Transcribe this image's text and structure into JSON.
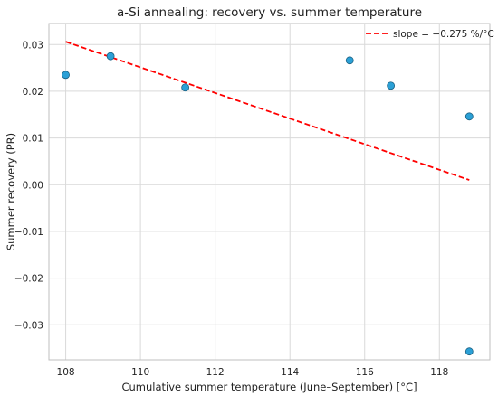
{
  "chart_data": {
    "type": "scatter",
    "title": "a-Si annealing: recovery vs. summer temperature",
    "xlabel": "Cumulative summer temperature (June–September) [°C]",
    "ylabel": "Summer recovery (PR)",
    "xlim": [
      107.55,
      119.35
    ],
    "ylim": [
      -0.0375,
      0.0345
    ],
    "x_ticks": [
      108,
      110,
      112,
      114,
      116,
      118
    ],
    "x_tick_labels": [
      "108",
      "110",
      "112",
      "114",
      "116",
      "118"
    ],
    "y_ticks": [
      -0.03,
      -0.02,
      -0.01,
      0.0,
      0.01,
      0.02,
      0.03
    ],
    "y_tick_labels": [
      "−0.03",
      "−0.02",
      "−0.01",
      "0.00",
      "0.01",
      "0.02",
      "0.03"
    ],
    "grid": true,
    "legend_position": "top-right",
    "points": [
      {
        "x": 108.0,
        "y": 0.0235
      },
      {
        "x": 109.2,
        "y": 0.0275
      },
      {
        "x": 111.2,
        "y": 0.0208
      },
      {
        "x": 115.6,
        "y": 0.0266
      },
      {
        "x": 116.7,
        "y": 0.0212
      },
      {
        "x": 118.8,
        "y": 0.0146
      },
      {
        "x": 118.8,
        "y": -0.0357
      }
    ],
    "fit_line": {
      "name": "slope = −0.275 %/°C",
      "x": [
        108.0,
        118.8
      ],
      "y": [
        0.0306,
        0.001
      ]
    },
    "colors": {
      "points": "#2ba0d6",
      "points_edge": "#1a5f80",
      "fit_line": "#ff0000",
      "grid": "#d9d9d9",
      "axes": "#bfbfbf"
    }
  }
}
